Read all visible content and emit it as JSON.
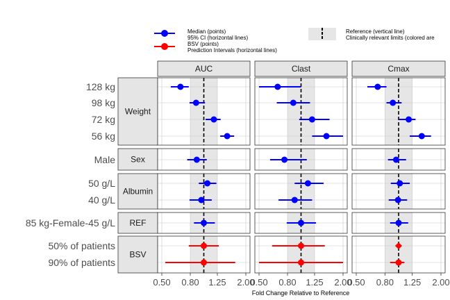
{
  "legend": {
    "left": [
      "Median (points)",
      "95% CI (horizontal lines)",
      "BSV (points)",
      "Prediction Intervals (horizontal lines)"
    ],
    "right": [
      "Reference (vertical line)",
      "Clinically relevant limits (colored are"
    ]
  },
  "colors": {
    "median": "#0000ff",
    "bsv": "#ff0000",
    "band": "#e6e6e6",
    "strip": "#e5e5e5"
  },
  "chart_data": {
    "type": "forest",
    "xlabel": "Fold Change Relative to Reference",
    "xticks": [
      0.5,
      0.8,
      1.25,
      2.0
    ],
    "xtick_labels": [
      "0.50",
      "0.80",
      "1.25",
      "2.00"
    ],
    "xscale": "log",
    "xlim": [
      0.5,
      2.0
    ],
    "reference": 1.0,
    "relevant_limits": [
      0.8,
      1.25
    ],
    "panels": [
      "AUC",
      "Clast",
      "Cmax"
    ],
    "groups": [
      {
        "name": "Weight",
        "rows": [
          "128 kg",
          "98 kg",
          "72 kg",
          "56 kg"
        ]
      },
      {
        "name": "Sex",
        "rows": [
          "Male"
        ]
      },
      {
        "name": "Albumin",
        "rows": [
          "50 g/L",
          "40 g/L"
        ]
      },
      {
        "name": "REF",
        "rows": [
          "85 kg-Female-45 g/L"
        ]
      },
      {
        "name": "BSV",
        "rows": [
          "50% of patients",
          "90% of patients"
        ]
      }
    ],
    "series": [
      {
        "panel": "AUC",
        "points": [
          {
            "row": "128 kg",
            "median": 0.68,
            "lower": 0.58,
            "upper": 0.78,
            "kind": "median"
          },
          {
            "row": "98 kg",
            "median": 0.88,
            "lower": 0.79,
            "upper": 1.02,
            "kind": "median"
          },
          {
            "row": "72 kg",
            "median": 1.18,
            "lower": 1.03,
            "upper": 1.32,
            "kind": "median"
          },
          {
            "row": "56 kg",
            "median": 1.47,
            "lower": 1.31,
            "upper": 1.65,
            "kind": "median"
          },
          {
            "row": "Male",
            "median": 0.89,
            "lower": 0.76,
            "upper": 1.05,
            "kind": "median"
          },
          {
            "row": "50 g/L",
            "median": 1.06,
            "lower": 0.92,
            "upper": 1.23,
            "kind": "median"
          },
          {
            "row": "40 g/L",
            "median": 0.96,
            "lower": 0.79,
            "upper": 1.14,
            "kind": "median"
          },
          {
            "row": "85 kg-Female-45 g/L",
            "median": 1.0,
            "lower": 0.85,
            "upper": 1.2,
            "kind": "median"
          },
          {
            "row": "50% of patients",
            "median": 1.0,
            "lower": 0.78,
            "upper": 1.28,
            "kind": "bsv"
          },
          {
            "row": "90% of patients",
            "median": 1.0,
            "lower": 0.53,
            "upper": 1.68,
            "kind": "bsv"
          }
        ]
      },
      {
        "panel": "Clast",
        "points": [
          {
            "row": "128 kg",
            "median": 0.68,
            "lower": 0.5,
            "upper": 1.0,
            "kind": "median"
          },
          {
            "row": "98 kg",
            "median": 0.88,
            "lower": 0.67,
            "upper": 1.16,
            "kind": "median"
          },
          {
            "row": "72 kg",
            "median": 1.2,
            "lower": 0.97,
            "upper": 1.6,
            "kind": "median"
          },
          {
            "row": "56 kg",
            "median": 1.52,
            "lower": 1.2,
            "upper": 2.0,
            "kind": "median"
          },
          {
            "row": "Male",
            "median": 0.76,
            "lower": 0.6,
            "upper": 1.1,
            "kind": "median"
          },
          {
            "row": "50 g/L",
            "median": 1.12,
            "lower": 0.9,
            "upper": 1.45,
            "kind": "median"
          },
          {
            "row": "40 g/L",
            "median": 0.9,
            "lower": 0.69,
            "upper": 1.2,
            "kind": "median"
          },
          {
            "row": "85 kg-Female-45 g/L",
            "median": 1.0,
            "lower": 0.79,
            "upper": 1.28,
            "kind": "median"
          },
          {
            "row": "50% of patients",
            "median": 1.0,
            "lower": 0.62,
            "upper": 1.48,
            "kind": "bsv"
          },
          {
            "row": "90% of patients",
            "median": 1.0,
            "lower": 0.5,
            "upper": 2.0,
            "kind": "bsv"
          }
        ]
      },
      {
        "panel": "Cmax",
        "points": [
          {
            "row": "128 kg",
            "median": 0.71,
            "lower": 0.6,
            "upper": 0.82,
            "kind": "median"
          },
          {
            "row": "98 kg",
            "median": 0.91,
            "lower": 0.82,
            "upper": 1.05,
            "kind": "median"
          },
          {
            "row": "72 kg",
            "median": 1.18,
            "lower": 1.01,
            "upper": 1.32,
            "kind": "median"
          },
          {
            "row": "56 kg",
            "median": 1.46,
            "lower": 1.2,
            "upper": 1.7,
            "kind": "median"
          },
          {
            "row": "Male",
            "median": 0.96,
            "lower": 0.84,
            "upper": 1.13,
            "kind": "median"
          },
          {
            "row": "50 g/L",
            "median": 1.02,
            "lower": 0.88,
            "upper": 1.2,
            "kind": "median"
          },
          {
            "row": "40 g/L",
            "median": 0.99,
            "lower": 0.85,
            "upper": 1.15,
            "kind": "median"
          },
          {
            "row": "85 kg-Female-45 g/L",
            "median": 1.0,
            "lower": 0.87,
            "upper": 1.17,
            "kind": "median"
          },
          {
            "row": "50% of patients",
            "median": 1.0,
            "lower": 0.95,
            "upper": 1.03,
            "kind": "bsv"
          },
          {
            "row": "90% of patients",
            "median": 1.0,
            "lower": 0.87,
            "upper": 1.1,
            "kind": "bsv"
          }
        ]
      }
    ]
  }
}
